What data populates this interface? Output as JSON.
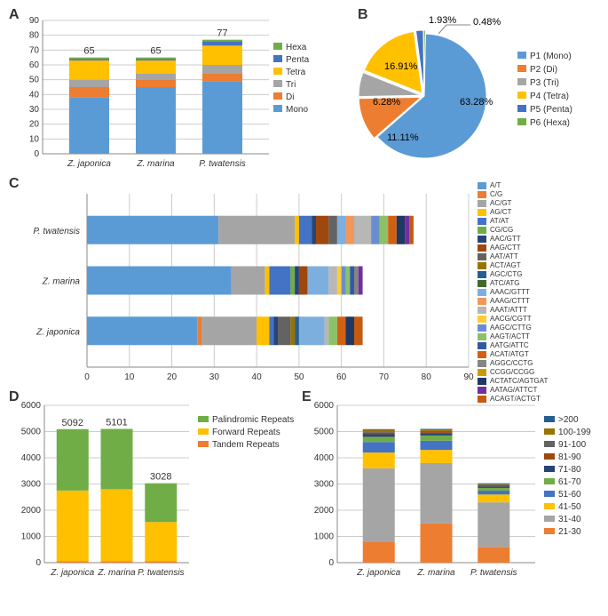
{
  "A": {
    "type": "stacked-bar",
    "ymax": 90,
    "ytick": 10,
    "categories": [
      "Z. japonica",
      "Z. marina",
      "P. twatensis"
    ],
    "totals": [
      65,
      65,
      77
    ],
    "series": [
      {
        "name": "Mono",
        "color": "#5b9bd5",
        "values": [
          38,
          45,
          49
        ]
      },
      {
        "name": "Di",
        "color": "#ed7d31",
        "values": [
          7,
          5,
          5
        ]
      },
      {
        "name": "Tri",
        "color": "#a5a5a5",
        "values": [
          5,
          4,
          6
        ]
      },
      {
        "name": "Tetra",
        "color": "#ffc000",
        "values": [
          13,
          9,
          13
        ]
      },
      {
        "name": "Penta",
        "color": "#4472c4",
        "values": [
          1,
          1,
          3
        ]
      },
      {
        "name": "Hexa",
        "color": "#70ad47",
        "values": [
          1,
          1,
          1
        ]
      }
    ],
    "legend_order": [
      "Hexa",
      "Penta",
      "Tetra",
      "Tri",
      "Di",
      "Mono"
    ]
  },
  "B": {
    "type": "pie",
    "slices": [
      {
        "name": "P1 (Mono)",
        "color": "#5b9bd5",
        "value": 63.28,
        "label": "63.28%"
      },
      {
        "name": "P2 (Di)",
        "color": "#ed7d31",
        "value": 11.11,
        "label": "11.11%"
      },
      {
        "name": "P3 (Tri)",
        "color": "#a5a5a5",
        "value": 6.28,
        "label": "6.28%"
      },
      {
        "name": "P4 (Tetra)",
        "color": "#ffc000",
        "value": 16.91,
        "label": "16.91%"
      },
      {
        "name": "P5 (Penta)",
        "color": "#4472c4",
        "value": 1.93,
        "label": "1.93%"
      },
      {
        "name": "P6 (Hexa)",
        "color": "#70ad47",
        "value": 0.48,
        "label": "0.48%"
      }
    ]
  },
  "C": {
    "type": "stacked-hbar",
    "xmax": 90,
    "xtick": 10,
    "rows": [
      "P. twatensis",
      "Z. marina",
      "Z. japonica"
    ],
    "series": [
      {
        "name": "A/T",
        "color": "#5b9bd5"
      },
      {
        "name": "C/G",
        "color": "#ed7d31"
      },
      {
        "name": "AC/GT",
        "color": "#a5a5a5"
      },
      {
        "name": "AG/CT",
        "color": "#ffc000"
      },
      {
        "name": "AT/AT",
        "color": "#4472c4"
      },
      {
        "name": "CG/CG",
        "color": "#70ad47"
      },
      {
        "name": "AAC/GTT",
        "color": "#264478"
      },
      {
        "name": "AAG/CTT",
        "color": "#9e480e"
      },
      {
        "name": "AAT/ATT",
        "color": "#636363"
      },
      {
        "name": "ACT/AGT",
        "color": "#997300"
      },
      {
        "name": "AGC/CTG",
        "color": "#255e91"
      },
      {
        "name": "ATC/ATG",
        "color": "#43682b"
      },
      {
        "name": "AAAC/GTTT",
        "color": "#7cafdd"
      },
      {
        "name": "AAAG/CTTT",
        "color": "#f1975a"
      },
      {
        "name": "AAAT/ATTT",
        "color": "#b7b7b7"
      },
      {
        "name": "AACG/CGTT",
        "color": "#ffcd33"
      },
      {
        "name": "AAGC/CTTG",
        "color": "#698ed0"
      },
      {
        "name": "AAGT/ACTT",
        "color": "#8cc168"
      },
      {
        "name": "AATG/ATTC",
        "color": "#335aa1"
      },
      {
        "name": "ACAT/ATGT",
        "color": "#d26012"
      },
      {
        "name": "AGGC/CCTG",
        "color": "#848484"
      },
      {
        "name": "CCGG/CCGG",
        "color": "#cc9a00"
      },
      {
        "name": "ACTATC/AGTGAT",
        "color": "#1f3864"
      },
      {
        "name": "AATAG/ATTCT",
        "color": "#7030a0"
      },
      {
        "name": "ACAGT/ACTGT",
        "color": "#c55a11"
      }
    ],
    "data": {
      "P. twatensis": [
        31,
        0,
        18,
        1,
        3,
        0,
        1,
        3,
        2,
        0,
        0,
        0,
        2,
        2,
        4,
        0,
        2,
        2,
        0,
        2,
        0,
        0,
        2,
        1,
        1
      ],
      "Z. marina": [
        34,
        0,
        8,
        1,
        5,
        1,
        1,
        2,
        0,
        0,
        0,
        0,
        5,
        0,
        2,
        1,
        1,
        1,
        1,
        0,
        1,
        0,
        0,
        1,
        0
      ],
      "Z. japonica": [
        26,
        1,
        13,
        3,
        1,
        0,
        1,
        0,
        3,
        1,
        1,
        0,
        6,
        0,
        1,
        0,
        0,
        2,
        0,
        2,
        0,
        0,
        2,
        0,
        2
      ]
    }
  },
  "D": {
    "type": "stacked-bar",
    "ymax": 6000,
    "ytick": 1000,
    "categories": [
      "Z. japonica",
      "Z. marina",
      "P. twatensis"
    ],
    "totals": [
      5092,
      5101,
      3028
    ],
    "series": [
      {
        "name": "Tandem Repeats",
        "color": "#ed7d31",
        "values": [
          50,
          50,
          50
        ]
      },
      {
        "name": "Forward Repeats",
        "color": "#ffc000",
        "values": [
          2700,
          2750,
          1500
        ]
      },
      {
        "name": "Palindromic Repeats",
        "color": "#70ad47",
        "values": [
          2342,
          2301,
          1478
        ]
      }
    ],
    "legend_order": [
      "Palindromic Repeats",
      "Forward Repeats",
      "Tandem Repeats"
    ]
  },
  "E": {
    "type": "stacked-bar",
    "ymax": 6000,
    "ytick": 1000,
    "categories": [
      "Z. japonica",
      "Z. marina",
      "P. twatensis"
    ],
    "series": [
      {
        "name": "21-30",
        "color": "#ed7d31",
        "values": [
          800,
          1500,
          600
        ]
      },
      {
        "name": "31-40",
        "color": "#a5a5a5",
        "values": [
          2800,
          2300,
          1700
        ]
      },
      {
        "name": "41-50",
        "color": "#ffc000",
        "values": [
          600,
          500,
          300
        ]
      },
      {
        "name": "51-60",
        "color": "#4472c4",
        "values": [
          400,
          350,
          150
        ]
      },
      {
        "name": "61-70",
        "color": "#70ad47",
        "values": [
          200,
          200,
          100
        ]
      },
      {
        "name": "71-80",
        "color": "#264478",
        "values": [
          100,
          80,
          60
        ]
      },
      {
        "name": "81-90",
        "color": "#9e480e",
        "values": [
          60,
          50,
          40
        ]
      },
      {
        "name": "91-100",
        "color": "#636363",
        "values": [
          50,
          40,
          30
        ]
      },
      {
        "name": "100-199",
        "color": "#997300",
        "values": [
          50,
          50,
          30
        ]
      },
      {
        "name": ">200",
        "color": "#255e91",
        "values": [
          32,
          31,
          18
        ]
      }
    ],
    "legend_order": [
      ">200",
      "100-199",
      "91-100",
      "81-90",
      "71-80",
      "61-70",
      "51-60",
      "41-50",
      "31-40",
      "21-30"
    ]
  }
}
